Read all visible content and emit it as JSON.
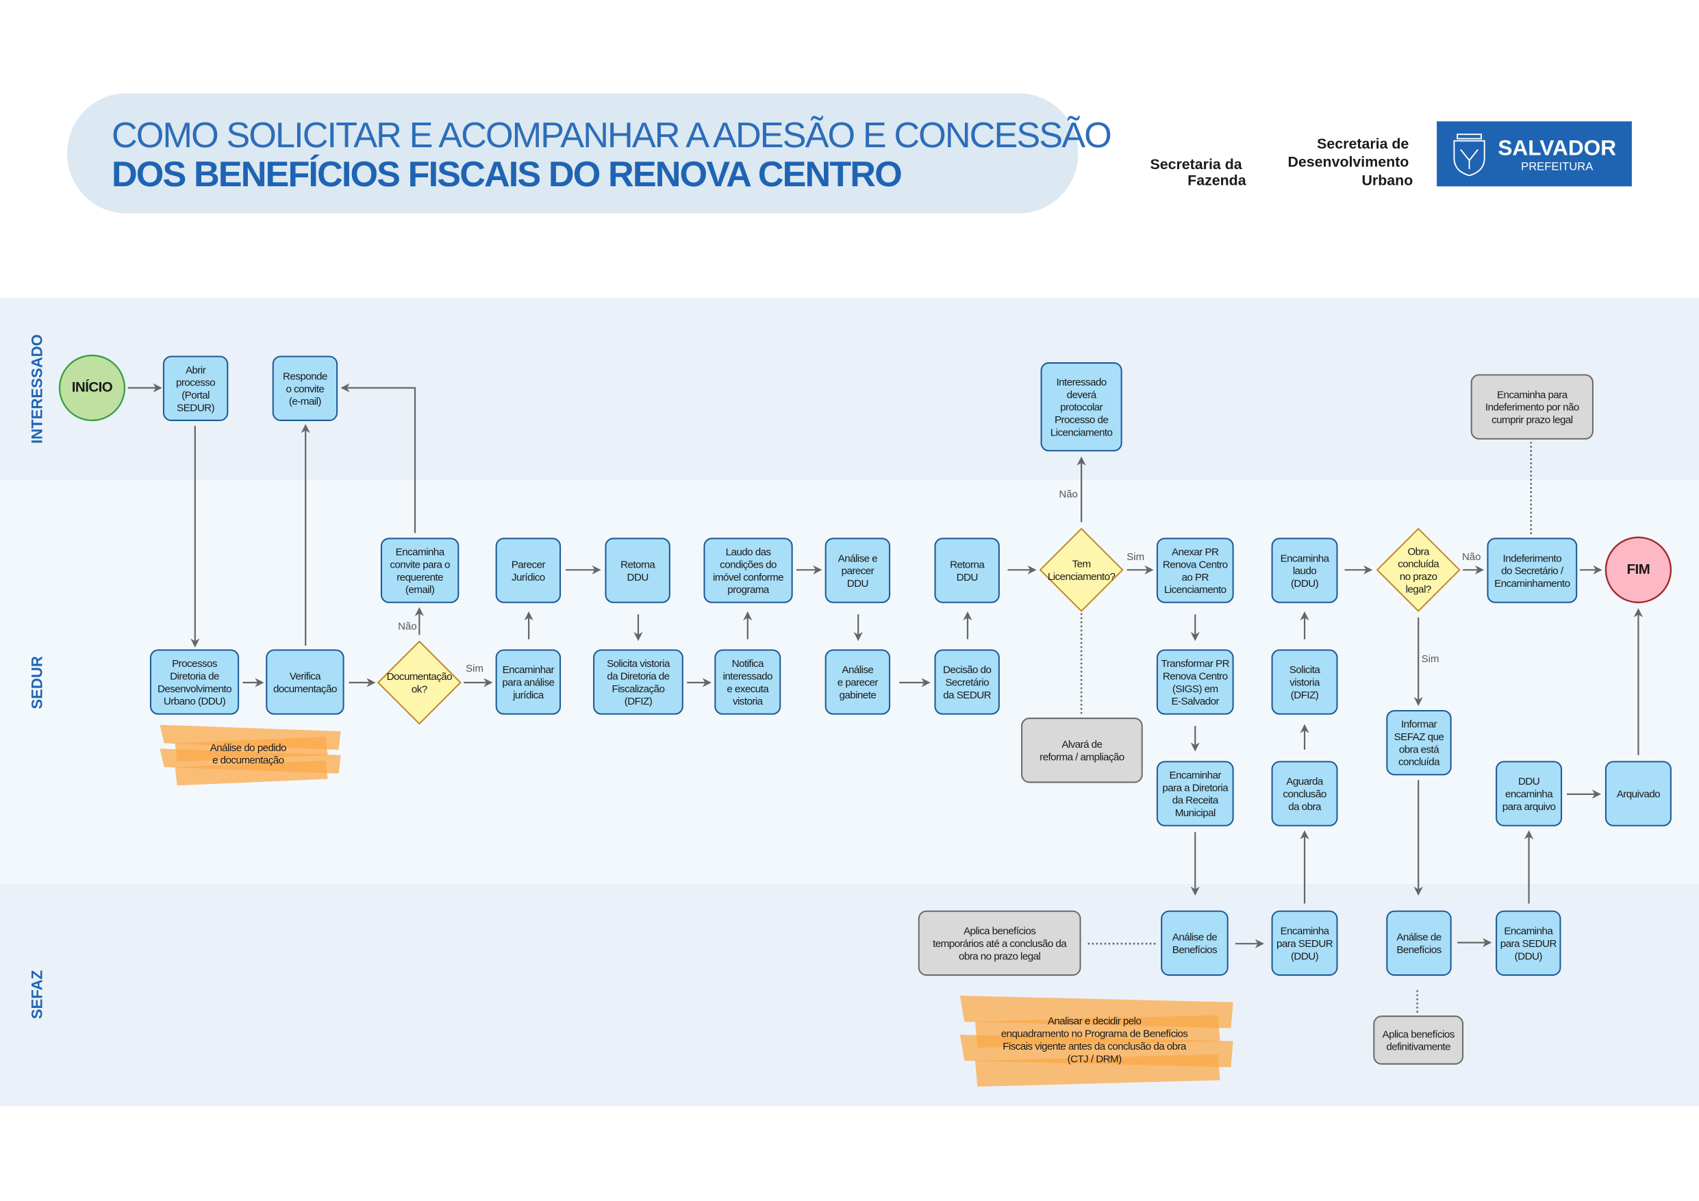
{
  "header": {
    "title_line1": "COMO SOLICITAR E ACOMPANHAR A ADESÃO E CONCESSÃO",
    "title_line2": "DOS BENEFÍCIOS FISCAIS DO RENOVA CENTRO",
    "org_fazenda": [
      "Secretaria da",
      "Fazenda"
    ],
    "org_sedur": [
      "Secretaria de",
      "Desenvolvimento",
      "Urbano"
    ],
    "logo": {
      "name": "SALVADOR",
      "sub": "PREFEITURA",
      "color": "#1f64b3",
      "icon": "coat-of-arms-icon"
    }
  },
  "lanes": [
    "INTERESSADO",
    "SEDUR",
    "SEFAZ"
  ],
  "colors": {
    "process": "#a8def8",
    "decision": "#fef6ad",
    "note": "#d9d9d9",
    "start": "#bfe0a0",
    "end": "#fdb8c5",
    "highlight": "#fba94a",
    "title_pill": "#dce8f2"
  },
  "labels": {
    "nao": "Não",
    "sim": "Sim"
  },
  "nodes": {
    "inicio": {
      "lines": [
        "INÍCIO"
      ]
    },
    "abrir": {
      "lines": [
        "Abrir",
        "processo",
        "(Portal",
        "SEDUR)"
      ]
    },
    "responde": {
      "lines": [
        "Responde",
        "o convite",
        "(e-mail)"
      ]
    },
    "processos": {
      "lines": [
        "Processos",
        "Diretoria de",
        "Desenvolvimento",
        "Urbano (DDU)"
      ]
    },
    "verifica": {
      "lines": [
        "Verifica",
        "documentação"
      ]
    },
    "doc_ok": {
      "lines": [
        "Documentação",
        "ok?"
      ]
    },
    "encaminha_convite": {
      "lines": [
        "Encaminha",
        "convite para o",
        "requerente",
        "(email)"
      ]
    },
    "parecer": {
      "lines": [
        "Parecer",
        "Jurídico"
      ]
    },
    "encaminhar_juridica": {
      "lines": [
        "Encaminhar",
        "para análise",
        "jurídica"
      ]
    },
    "retorna1": {
      "lines": [
        "Retorna",
        "DDU"
      ]
    },
    "solicita_dfiz": {
      "lines": [
        "Solicita vistoria",
        "da Diretoria de",
        "Fiscalização",
        "(DFIZ)"
      ]
    },
    "laudo": {
      "lines": [
        "Laudo das",
        "condições do",
        "imóvel conforme",
        "programa"
      ]
    },
    "notifica": {
      "lines": [
        "Notifica",
        "interessado",
        "e executa",
        "vistoria"
      ]
    },
    "analise_ddu": {
      "lines": [
        "Análise e",
        "parecer",
        "DDU"
      ]
    },
    "analise_gab": {
      "lines": [
        "Análise",
        "e parecer",
        "gabinete"
      ]
    },
    "retorna2": {
      "lines": [
        "Retorna",
        "DDU"
      ]
    },
    "decisao": {
      "lines": [
        "Decisão do",
        "Secretário",
        "da SEDUR"
      ]
    },
    "tem_lic": {
      "lines": [
        "Tem",
        "Licenciamento?"
      ]
    },
    "interessado_devera": {
      "lines": [
        "Interessado",
        "deverá",
        "protocolar",
        "Processo de",
        "Licenciamento"
      ]
    },
    "alvara": {
      "lines": [
        "Alvará de",
        "reforma / ampliação"
      ]
    },
    "anexar": {
      "lines": [
        "Anexar PR",
        "Renova Centro",
        "ao PR",
        "Licenciamento"
      ]
    },
    "transformar": {
      "lines": [
        "Transformar PR",
        "Renova Centro",
        "(SIGS) em",
        "E-Salvador"
      ]
    },
    "encaminhar_receita": {
      "lines": [
        "Encaminhar",
        "para a Diretoria",
        "da Receita",
        "Municipal"
      ]
    },
    "analise_benef1": {
      "lines": [
        "Análise de",
        "Benefícios"
      ]
    },
    "aplica_temp": {
      "lines": [
        "Aplica benefícios",
        "temporários até a conclusão da",
        "obra no prazo legal"
      ]
    },
    "encaminha_laudo": {
      "lines": [
        "Encaminha",
        "laudo",
        "(DDU)"
      ]
    },
    "solicita_vistoria": {
      "lines": [
        "Solicita",
        "vistoria",
        "(DFIZ)"
      ]
    },
    "aguarda": {
      "lines": [
        "Aguarda",
        "conclusão",
        "da obra"
      ]
    },
    "encaminha_sedur1": {
      "lines": [
        "Encaminha",
        "para SEDUR",
        "(DDU)"
      ]
    },
    "obra_concl": {
      "lines": [
        "Obra",
        "concluída",
        "no prazo",
        "legal?"
      ]
    },
    "indeferimento": {
      "lines": [
        "Indeferimento",
        "do Secretário /",
        "Encaminhamento"
      ]
    },
    "encaminha_indef": {
      "lines": [
        "Encaminha para",
        "Indeferimento por não",
        "cumprir prazo legal"
      ]
    },
    "fim": {
      "lines": [
        "FIM"
      ]
    },
    "informar": {
      "lines": [
        "Informar",
        "SEFAZ que",
        "obra está",
        "concluída"
      ]
    },
    "analise_benef2": {
      "lines": [
        "Análise de",
        "Benefícios"
      ]
    },
    "aplica_def": {
      "lines": [
        "Aplica benefícios",
        "definitivamente"
      ]
    },
    "encaminha_sedur2": {
      "lines": [
        "Encaminha",
        "para SEDUR",
        "(DDU)"
      ]
    },
    "ddu_arquivo": {
      "lines": [
        "DDU",
        "encaminha",
        "para arquivo"
      ]
    },
    "arquivado": {
      "lines": [
        "Arquivado"
      ]
    }
  },
  "highlights": {
    "analise_pedido": {
      "lines": [
        "Análise do pedido",
        "e documentação"
      ]
    },
    "analisar_decidir": {
      "lines": [
        "Analisar e decidir pelo",
        "enquadramento no Programa de Benefícios",
        "Fiscais vigente antes da conclusão da obra",
        "(CTJ / DRM)"
      ]
    }
  }
}
